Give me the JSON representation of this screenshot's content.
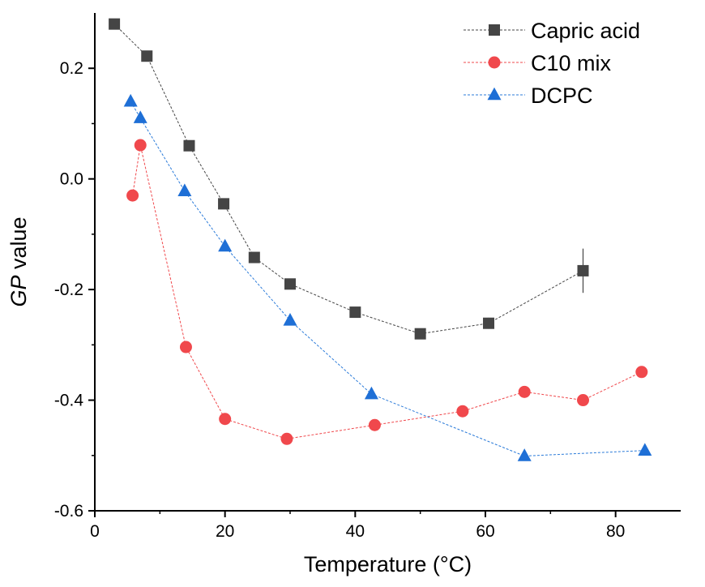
{
  "chart_data": {
    "type": "scatter",
    "xlabel": "Temperature (°C)",
    "ylabel_italic": "GP",
    "ylabel_rest": " value",
    "xlim": [
      0,
      90
    ],
    "ylim": [
      -0.6,
      0.3
    ],
    "xticks": [
      0,
      20,
      40,
      60,
      80
    ],
    "yticks": [
      -0.6,
      -0.4,
      -0.2,
      0.0,
      0.2
    ],
    "xtick_labels": [
      "0",
      "20",
      "40",
      "60",
      "80"
    ],
    "ytick_labels": [
      "-0.6",
      "-0.4",
      "-0.2",
      "0.0",
      "0.2"
    ],
    "grid": false,
    "legend_position": "top-right",
    "series": [
      {
        "name": "Capric acid",
        "marker": "square",
        "color": "#454545",
        "line_color": "#454545",
        "x": [
          3,
          8,
          14.5,
          19.8,
          24.5,
          30,
          40,
          50,
          60.5,
          75
        ],
        "y": [
          0.28,
          0.222,
          0.06,
          -0.045,
          -0.142,
          -0.19,
          -0.241,
          -0.28,
          -0.261,
          -0.166
        ],
        "yerr": [
          0,
          0,
          0,
          0,
          0,
          0,
          0,
          0,
          0.01,
          0.04
        ]
      },
      {
        "name": "C10 mix",
        "marker": "circle",
        "color": "#f0484c",
        "line_color": "#f0484c",
        "x": [
          5.8,
          7,
          14,
          20,
          29.5,
          43,
          56.5,
          66,
          75,
          84
        ],
        "y": [
          -0.03,
          0.061,
          -0.304,
          -0.434,
          -0.47,
          -0.445,
          -0.42,
          -0.385,
          -0.4,
          -0.349
        ],
        "yerr": [
          0,
          0,
          0,
          0,
          0,
          0,
          0,
          0,
          0,
          0
        ]
      },
      {
        "name": "DCPC",
        "marker": "triangle",
        "color": "#1e6fd6",
        "line_color": "#2b7bd9",
        "x": [
          5.5,
          7,
          13.8,
          20,
          30,
          42.5,
          66,
          84.5
        ],
        "y": [
          0.14,
          0.11,
          -0.022,
          -0.122,
          -0.256,
          -0.389,
          -0.501,
          -0.491
        ],
        "yerr": [
          0,
          0,
          0,
          0,
          0,
          0,
          0,
          0
        ]
      }
    ]
  }
}
